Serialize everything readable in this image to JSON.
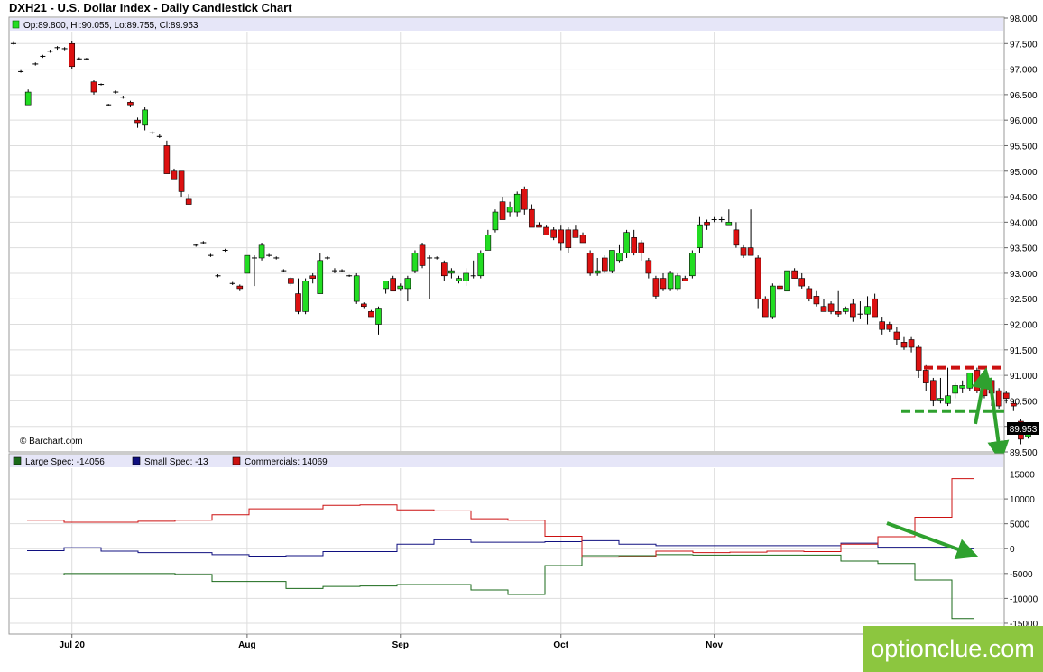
{
  "title": "DXH21 - U.S. Dollar Index - Daily Candlestick Chart",
  "ohlc_legend": "Op:89.800, Hi:90.055, Lo:89.755, Cl:89.953",
  "credit": "© Barchart.com",
  "last_price_label": "89.953",
  "watermark": "optionclue.com",
  "colors": {
    "up": "#22dd22",
    "down": "#dd1111",
    "large": "#1a6a1a",
    "small": "#101080",
    "commercial": "#cc1111",
    "annotation_green": "#2fa12f",
    "annotation_red": "#cc1111"
  },
  "chart_data": [
    {
      "type": "candlestick",
      "title": "DXH21 - U.S. Dollar Index - Daily Candlestick Chart",
      "ylim": [
        89.5,
        98.0
      ],
      "y_ticks": [
        "98.000",
        "97.500",
        "97.000",
        "96.500",
        "96.000",
        "95.500",
        "95.000",
        "94.500",
        "94.000",
        "93.500",
        "93.000",
        "92.500",
        "92.000",
        "91.500",
        "91.000",
        "90.500",
        "90.000",
        "89.500"
      ],
      "x_ticks": [
        "Jul 20",
        "Aug",
        "Sep",
        "Oct",
        "Nov"
      ],
      "x_tick_index": [
        8,
        32,
        53,
        75,
        96
      ],
      "candles": [
        [
          97.5,
          97.53,
          97.48,
          97.5
        ],
        [
          96.95,
          96.98,
          96.93,
          96.95
        ],
        [
          96.3,
          96.6,
          96.3,
          96.55
        ],
        [
          97.1,
          97.13,
          97.07,
          97.1
        ],
        [
          97.25,
          97.28,
          97.22,
          97.25
        ],
        [
          97.35,
          97.38,
          97.32,
          97.35
        ],
        [
          97.42,
          97.45,
          97.38,
          97.42
        ],
        [
          97.4,
          97.43,
          97.37,
          97.4
        ],
        [
          97.5,
          97.55,
          97.0,
          97.05
        ],
        [
          97.2,
          97.23,
          97.17,
          97.2
        ],
        [
          97.2,
          97.22,
          97.18,
          97.2
        ],
        [
          96.75,
          96.78,
          96.5,
          96.55
        ],
        [
          96.7,
          96.72,
          96.68,
          96.7
        ],
        [
          96.3,
          96.32,
          96.28,
          96.3
        ],
        [
          96.55,
          96.58,
          96.52,
          96.55
        ],
        [
          96.45,
          96.48,
          96.42,
          96.45
        ],
        [
          96.35,
          96.38,
          96.25,
          96.3
        ],
        [
          96.0,
          96.05,
          95.85,
          95.95
        ],
        [
          95.9,
          96.25,
          95.8,
          96.2
        ],
        [
          95.75,
          95.78,
          95.72,
          95.75
        ],
        [
          95.7,
          95.72,
          95.65,
          95.68
        ],
        [
          95.5,
          95.6,
          94.95,
          94.95
        ],
        [
          95.0,
          95.05,
          94.85,
          94.85
        ],
        [
          95.0,
          95.0,
          94.5,
          94.6
        ],
        [
          94.45,
          94.55,
          94.35,
          94.35
        ],
        [
          93.55,
          93.58,
          93.52,
          93.55
        ],
        [
          93.6,
          93.63,
          93.57,
          93.6
        ],
        [
          93.35,
          93.38,
          93.32,
          93.35
        ],
        [
          92.95,
          92.98,
          92.92,
          92.95
        ],
        [
          93.45,
          93.48,
          93.42,
          93.45
        ],
        [
          92.8,
          92.83,
          92.77,
          92.8
        ],
        [
          92.75,
          92.78,
          92.65,
          92.7
        ],
        [
          93.0,
          93.35,
          93.0,
          93.35
        ],
        [
          93.3,
          93.35,
          92.75,
          93.3
        ],
        [
          93.3,
          93.6,
          93.25,
          93.55
        ],
        [
          93.35,
          93.38,
          93.32,
          93.35
        ],
        [
          93.3,
          93.33,
          93.27,
          93.3
        ],
        [
          93.05,
          93.08,
          93.02,
          93.05
        ],
        [
          92.9,
          92.93,
          92.75,
          92.8
        ],
        [
          92.6,
          92.9,
          92.2,
          92.25
        ],
        [
          92.25,
          92.9,
          92.2,
          92.85
        ],
        [
          92.95,
          93.0,
          92.8,
          92.9
        ],
        [
          92.6,
          93.4,
          92.6,
          93.25
        ],
        [
          93.3,
          93.33,
          93.27,
          93.3
        ],
        [
          93.05,
          93.1,
          93.0,
          93.05
        ],
        [
          93.05,
          93.08,
          93.02,
          93.05
        ],
        [
          92.95,
          92.97,
          92.93,
          92.95
        ],
        [
          92.45,
          93.0,
          92.4,
          92.95
        ],
        [
          92.4,
          92.43,
          92.3,
          92.35
        ],
        [
          92.25,
          92.28,
          92.15,
          92.15
        ],
        [
          92.0,
          92.35,
          91.8,
          92.3
        ],
        [
          92.7,
          92.85,
          92.6,
          92.85
        ],
        [
          92.9,
          92.95,
          92.65,
          92.65
        ],
        [
          92.7,
          92.8,
          92.65,
          92.75
        ],
        [
          92.7,
          92.95,
          92.45,
          92.9
        ],
        [
          93.05,
          93.45,
          93.0,
          93.4
        ],
        [
          93.55,
          93.6,
          93.1,
          93.15
        ],
        [
          93.3,
          93.35,
          92.5,
          93.3
        ],
        [
          93.3,
          93.33,
          93.27,
          93.3
        ],
        [
          93.2,
          93.25,
          92.85,
          92.95
        ],
        [
          93.0,
          93.1,
          92.9,
          93.05
        ],
        [
          92.85,
          92.95,
          92.8,
          92.9
        ],
        [
          92.85,
          93.1,
          92.75,
          93.0
        ],
        [
          92.95,
          93.25,
          92.9,
          92.95
        ],
        [
          92.95,
          93.45,
          92.9,
          93.4
        ],
        [
          93.45,
          93.85,
          93.45,
          93.75
        ],
        [
          93.85,
          94.25,
          93.8,
          94.2
        ],
        [
          94.4,
          94.5,
          94.05,
          94.05
        ],
        [
          94.2,
          94.4,
          94.1,
          94.3
        ],
        [
          94.2,
          94.6,
          94.1,
          94.55
        ],
        [
          94.65,
          94.7,
          94.15,
          94.25
        ],
        [
          94.25,
          94.35,
          93.95,
          93.9
        ],
        [
          93.95,
          94.0,
          93.9,
          93.9
        ],
        [
          93.9,
          93.95,
          93.8,
          93.75
        ],
        [
          93.85,
          93.9,
          93.65,
          93.7
        ],
        [
          93.85,
          93.95,
          93.45,
          93.6
        ],
        [
          93.85,
          93.9,
          93.4,
          93.5
        ],
        [
          93.85,
          93.95,
          93.75,
          93.7
        ],
        [
          93.75,
          93.8,
          93.6,
          93.6
        ],
        [
          93.4,
          93.45,
          92.95,
          93.0
        ],
        [
          93.0,
          93.3,
          92.95,
          93.05
        ],
        [
          93.3,
          93.35,
          93.0,
          93.05
        ],
        [
          93.05,
          93.45,
          93.0,
          93.45
        ],
        [
          93.25,
          93.55,
          93.2,
          93.4
        ],
        [
          93.4,
          93.85,
          93.3,
          93.8
        ],
        [
          93.7,
          93.85,
          93.35,
          93.4
        ],
        [
          93.6,
          93.65,
          93.25,
          93.4
        ],
        [
          93.25,
          93.3,
          92.9,
          93.0
        ],
        [
          92.9,
          92.95,
          92.5,
          92.55
        ],
        [
          92.9,
          93.0,
          92.65,
          92.7
        ],
        [
          92.7,
          93.05,
          92.65,
          93.0
        ],
        [
          92.7,
          93.0,
          92.65,
          92.95
        ],
        [
          92.9,
          92.95,
          92.85,
          92.85
        ],
        [
          92.95,
          93.45,
          92.9,
          93.4
        ],
        [
          93.5,
          94.1,
          93.4,
          93.95
        ],
        [
          94.0,
          94.05,
          93.85,
          93.95
        ],
        [
          94.05,
          94.1,
          94.0,
          94.05
        ],
        [
          94.05,
          94.1,
          94.0,
          94.05
        ],
        [
          93.95,
          94.25,
          93.95,
          94.0
        ],
        [
          93.85,
          94.0,
          93.5,
          93.55
        ],
        [
          93.5,
          93.55,
          93.3,
          93.35
        ],
        [
          93.5,
          94.25,
          93.35,
          93.35
        ],
        [
          93.3,
          93.35,
          92.3,
          92.5
        ],
        [
          92.5,
          92.55,
          92.15,
          92.15
        ],
        [
          92.15,
          92.8,
          92.1,
          92.75
        ],
        [
          92.75,
          92.8,
          92.65,
          92.7
        ],
        [
          92.65,
          93.05,
          92.65,
          93.05
        ],
        [
          93.05,
          93.1,
          92.9,
          92.9
        ],
        [
          92.9,
          93.0,
          92.7,
          92.75
        ],
        [
          92.7,
          92.75,
          92.45,
          92.5
        ],
        [
          92.55,
          92.65,
          92.35,
          92.4
        ],
        [
          92.35,
          92.5,
          92.25,
          92.25
        ],
        [
          92.4,
          92.45,
          92.2,
          92.25
        ],
        [
          92.25,
          92.65,
          92.15,
          92.2
        ],
        [
          92.25,
          92.35,
          92.2,
          92.3
        ],
        [
          92.4,
          92.5,
          92.05,
          92.15
        ],
        [
          92.2,
          92.45,
          92.1,
          92.2
        ],
        [
          92.2,
          92.55,
          92.0,
          92.35
        ],
        [
          92.5,
          92.6,
          92.15,
          92.15
        ],
        [
          92.05,
          92.15,
          91.8,
          91.9
        ],
        [
          92.0,
          92.05,
          91.85,
          91.9
        ],
        [
          91.85,
          91.95,
          91.6,
          91.7
        ],
        [
          91.65,
          91.75,
          91.5,
          91.55
        ],
        [
          91.7,
          91.75,
          91.45,
          91.55
        ],
        [
          91.55,
          91.6,
          90.95,
          91.1
        ],
        [
          91.1,
          91.2,
          90.7,
          90.85
        ],
        [
          90.9,
          90.95,
          90.4,
          90.5
        ],
        [
          90.5,
          90.95,
          90.45,
          90.55
        ],
        [
          90.45,
          91.15,
          90.4,
          90.6
        ],
        [
          90.65,
          90.85,
          90.55,
          90.8
        ],
        [
          90.75,
          90.9,
          90.65,
          90.8
        ],
        [
          90.75,
          91.05,
          90.7,
          91.05
        ],
        [
          91.1,
          91.15,
          90.65,
          90.7
        ],
        [
          91.0,
          91.05,
          90.55,
          90.6
        ],
        [
          90.9,
          90.95,
          90.4,
          90.65
        ],
        [
          90.7,
          90.75,
          90.35,
          90.4
        ],
        [
          90.65,
          90.7,
          90.45,
          90.55
        ],
        [
          90.45,
          90.5,
          90.3,
          90.4
        ],
        [
          90.1,
          90.15,
          89.65,
          89.75
        ],
        [
          89.8,
          90.06,
          89.76,
          89.95
        ]
      ],
      "annotations": [
        {
          "type": "dashed_level",
          "value": 91.15,
          "color": "red"
        },
        {
          "type": "dashed_level",
          "value": 90.3,
          "color": "green"
        }
      ]
    },
    {
      "type": "line",
      "step": true,
      "ylim": [
        -17000,
        16000
      ],
      "y_ticks": [
        15000,
        10000,
        5000,
        0,
        -5000,
        -10000,
        -15000
      ],
      "series": [
        {
          "name": "Large Spec: -14056",
          "values": [
            -5300,
            -5000,
            -5000,
            -5000,
            -5200,
            -6600,
            -6600,
            -8000,
            -7600,
            -7500,
            -7200,
            -7200,
            -8300,
            -9200,
            -3400,
            -1400,
            -1400,
            -1200,
            -1300,
            -1300,
            -1300,
            -1300,
            -2500,
            -3000,
            -6300,
            -14056
          ]
        },
        {
          "name": "Small Spec: -13",
          "values": [
            -400,
            200,
            -500,
            -800,
            -800,
            -1200,
            -1500,
            -1400,
            -600,
            -600,
            900,
            1800,
            1300,
            1300,
            1400,
            1600,
            900,
            600,
            600,
            600,
            600,
            600,
            1100,
            300,
            300,
            -13
          ]
        },
        {
          "name": "Commercials: 14069",
          "values": [
            5700,
            5300,
            5300,
            5500,
            5700,
            6800,
            8000,
            8000,
            8700,
            8800,
            7800,
            7600,
            6000,
            5700,
            2500,
            -1700,
            -1600,
            -500,
            -800,
            -700,
            -500,
            -600,
            900,
            2400,
            6300,
            14069
          ]
        }
      ]
    }
  ]
}
